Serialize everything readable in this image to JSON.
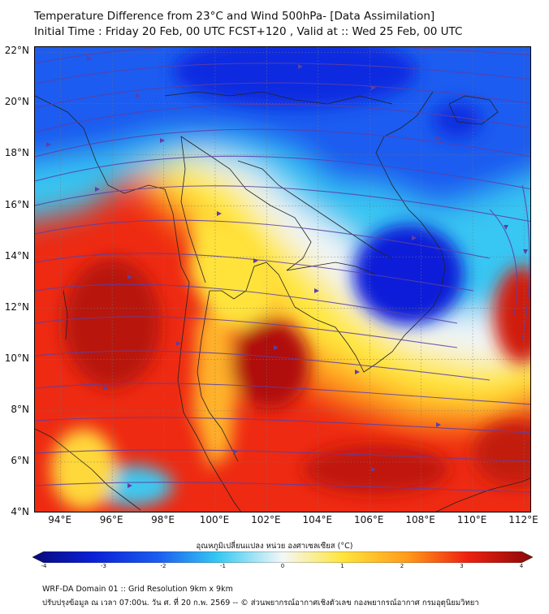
{
  "header": {
    "title_line1": "Temperature Difference from 23°C and Wind 500hPa- [Data Assimilation]",
    "title_line2": "Initial Time : Friday 20 Feb, 00 UTC FCST+120 , Valid at ::  Wed 25 Feb, 00 UTC"
  },
  "map": {
    "lat_labels": [
      "22°N",
      "20°N",
      "18°N",
      "16°N",
      "14°N",
      "12°N",
      "10°N",
      "8°N",
      "6°N",
      "4°N"
    ],
    "lon_labels": [
      "94°E",
      "96°E",
      "98°E",
      "100°E",
      "102°E",
      "104°E",
      "106°E",
      "108°E",
      "110°E",
      "112°E"
    ],
    "extent": {
      "lon_min": 93,
      "lon_max": 112.3,
      "lat_min": 4,
      "lat_max": 22.2
    },
    "field": "temperature difference (°C)",
    "streamline_color": "#5b3fa8",
    "border_color": "#222222",
    "colors": {
      "cold_core": "#0b1fd6",
      "blue": "#1a5cf0",
      "light_blue": "#35c9f2",
      "white": "#f4f7f8",
      "yellow": "#ffe53b",
      "orange": "#ff9a1a",
      "red": "#ee2010",
      "dark_red": "#b8100a"
    }
  },
  "colorbar": {
    "title": "อุณหภูมิเปลี่ยนแปลง หน่วย องศาเซลเซียส (°C)",
    "ticks": [
      "-4",
      "-3",
      "-2",
      "-1",
      "0",
      "1",
      "2",
      "3",
      "4"
    ],
    "min": -4,
    "max": 4
  },
  "footer": {
    "line1": "WRF-DA Domain 01 :: Grid Resolution 9km x 9km",
    "line2": "ปรับปรุงข้อมูล ณ เวลา 07:00น. วัน ศ. ที่ 20 ก.พ. 2569 -- © ส่วนพยากรณ์อากาศเชิงตัวเลข กองพยากรณ์อากาศ กรมอุตุนิยมวิทยา"
  }
}
